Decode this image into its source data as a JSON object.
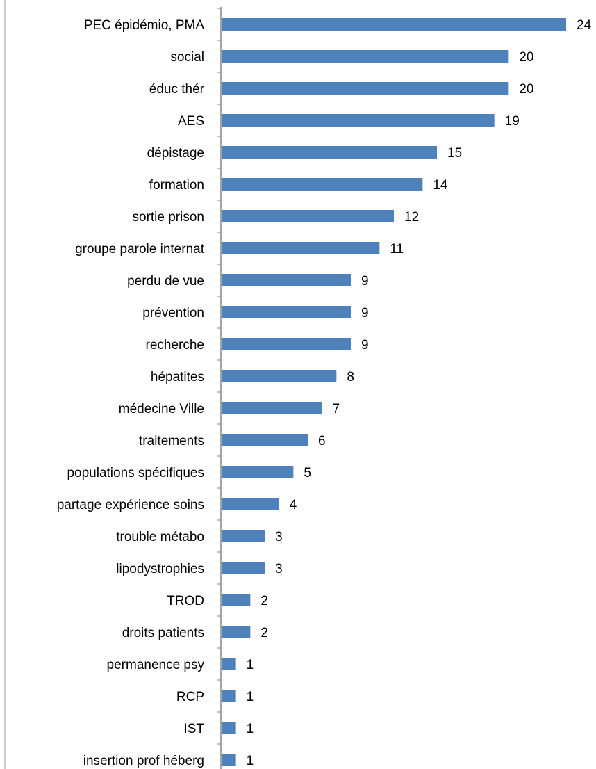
{
  "chart_data": {
    "type": "bar",
    "orientation": "horizontal",
    "title": "",
    "xlabel": "",
    "ylabel": "",
    "categories": [
      "PEC épidémio, PMA",
      "social",
      "éduc thér",
      "AES",
      "dépistage",
      "formation",
      "sortie prison",
      "groupe parole internat",
      "perdu de vue",
      "prévention",
      "recherche",
      "hépatites",
      "médecine Ville",
      "traitements",
      "populations spécifiques",
      "partage expérience soins",
      "trouble métabo",
      "lipodystrophies",
      "TROD",
      "droits patients",
      "permanence psy",
      "RCP",
      "IST",
      "insertion prof héberg"
    ],
    "values": [
      24,
      20,
      20,
      19,
      15,
      14,
      12,
      11,
      9,
      9,
      9,
      8,
      7,
      6,
      5,
      4,
      3,
      3,
      2,
      2,
      1,
      1,
      1,
      1
    ],
    "xlim": [
      0,
      24
    ],
    "grid": false,
    "legend": "none",
    "data_labels": true,
    "bar_color": "#4F81BD"
  }
}
